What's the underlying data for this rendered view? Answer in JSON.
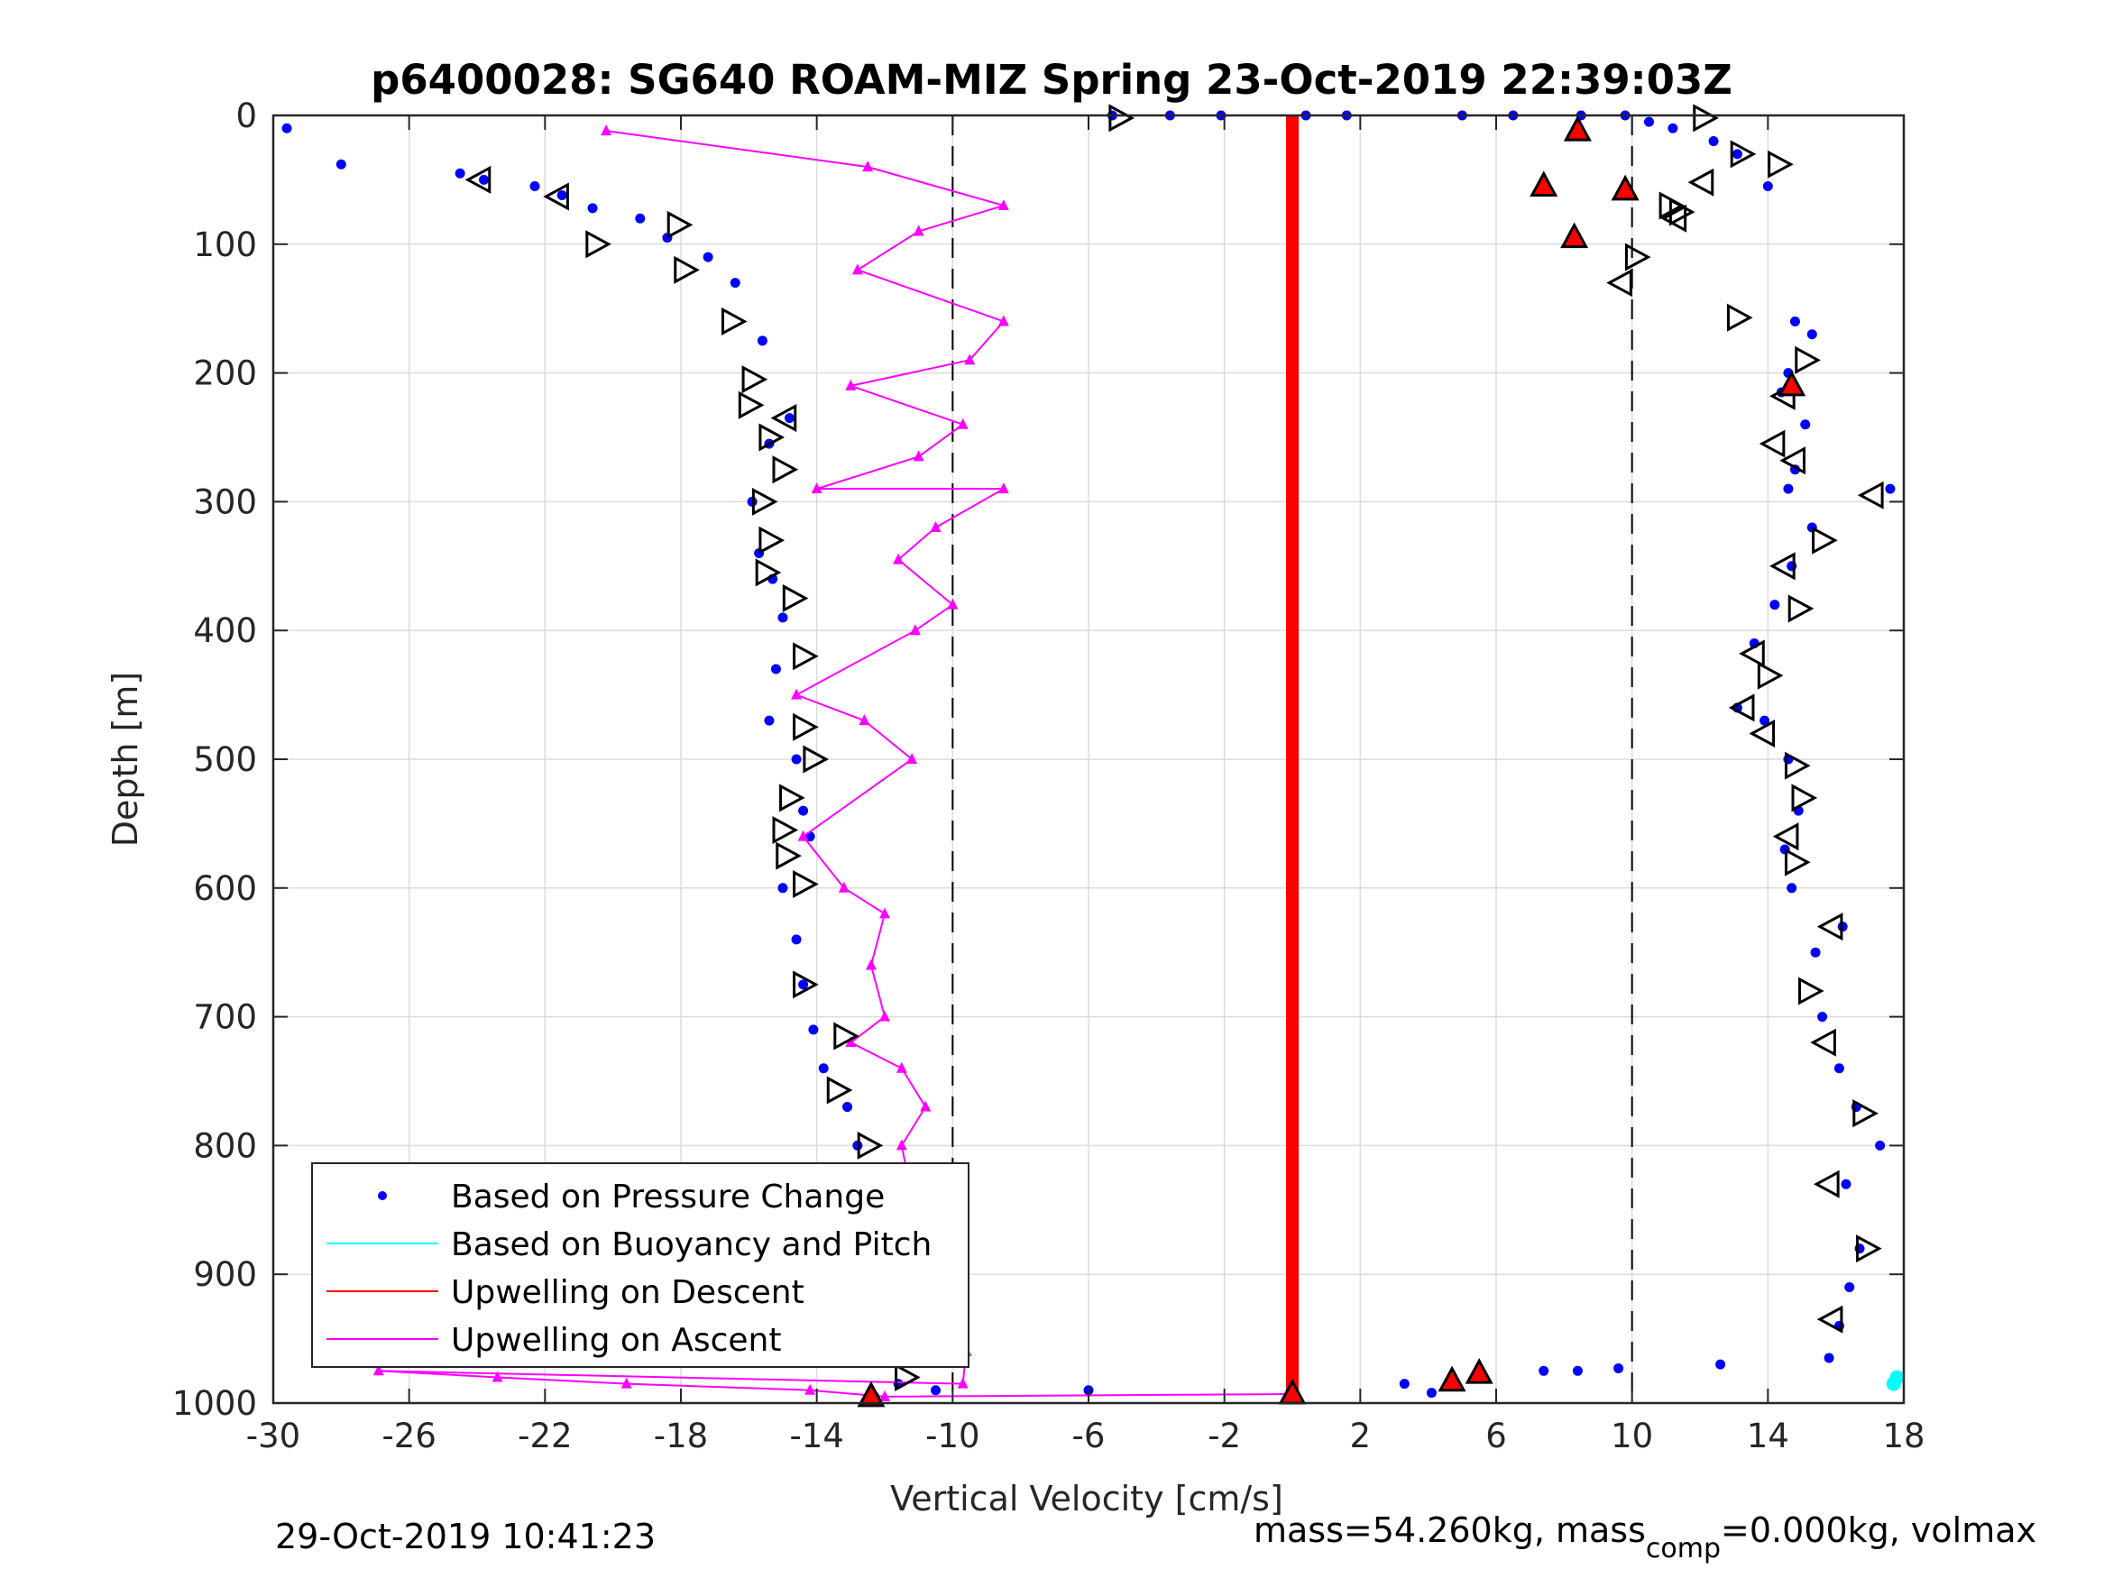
{
  "chart_data": {
    "type": "scatter",
    "title": "p6400028: SG640 ROAM-MIZ Spring 23-Oct-2019 22:39:03Z",
    "xlabel": "Vertical Velocity [cm/s]",
    "ylabel": "Depth [m]",
    "xlim": [
      -30,
      18
    ],
    "ylim": [
      0,
      1000
    ],
    "y_reversed": true,
    "grid": true,
    "legend_position": "bottom-left",
    "xticks": [
      "-30",
      "-26",
      "-22",
      "-18",
      "-14",
      "-10",
      "-6",
      "-2",
      "2",
      "6",
      "10",
      "14",
      "18"
    ],
    "yticks": [
      "0",
      "100",
      "200",
      "300",
      "400",
      "500",
      "600",
      "700",
      "800",
      "900",
      "1000"
    ],
    "reference_lines_x": [
      -10,
      10
    ],
    "series": [
      {
        "name": "Based on Pressure Change",
        "color": "#0000ff",
        "marker": "dot",
        "x": [
          -29.6,
          -28,
          -24.5,
          -23.8,
          -22.3,
          -21.5,
          -20.6,
          -19.2,
          -18.4,
          -17.2,
          -16.4,
          -15.6,
          -14.8,
          -15.4,
          -15.9,
          -15.7,
          -15.3,
          -15.0,
          -15.2,
          -15.4,
          -14.6,
          -14.4,
          -14.2,
          -15.0,
          -14.6,
          -14.4,
          -14.1,
          -13.8,
          -13.1,
          -12.8,
          -12.3,
          -12.0,
          -11.9,
          -11.8,
          -11.7,
          -11.6,
          -12.3,
          -10.5,
          -6.0,
          -5.3,
          -3.6,
          -2.1,
          0.4,
          1.6,
          5.0,
          6.5,
          8.5,
          9.8,
          10.5,
          11.2,
          12.4,
          13.1,
          14.0,
          14.8,
          15.3,
          14.6,
          14.4,
          15.1,
          14.8,
          14.6,
          17.6,
          15.3,
          14.7,
          14.2,
          13.6,
          13.1,
          13.9,
          14.6,
          14.9,
          14.5,
          14.7,
          16.2,
          15.4,
          15.6,
          16.1,
          16.6,
          17.3,
          16.3,
          16.7,
          16.4,
          16.1,
          15.8,
          3.3,
          4.1,
          4.8,
          5.6,
          7.4,
          8.4,
          9.6,
          12.6
        ],
        "y": [
          10,
          38,
          45,
          50,
          55,
          62,
          72,
          80,
          95,
          110,
          130,
          175,
          235,
          255,
          300,
          340,
          360,
          390,
          430,
          470,
          500,
          540,
          560,
          600,
          640,
          675,
          710,
          740,
          770,
          800,
          840,
          870,
          910,
          940,
          965,
          985,
          995,
          990,
          990,
          0,
          0,
          0,
          0,
          0,
          0,
          0,
          0,
          0,
          5,
          10,
          20,
          30,
          55,
          160,
          170,
          200,
          215,
          240,
          275,
          290,
          290,
          320,
          350,
          380,
          410,
          460,
          470,
          500,
          540,
          570,
          600,
          630,
          650,
          700,
          740,
          770,
          800,
          830,
          880,
          910,
          940,
          965,
          985,
          992,
          985,
          978,
          975,
          975,
          973,
          970
        ]
      },
      {
        "name": "Based on Buoyancy and Pitch",
        "color": "#00ffff",
        "marker": "line",
        "x": [
          17.7,
          17.8
        ],
        "y": [
          985,
          980
        ]
      },
      {
        "name": "Upwelling on Descent",
        "color": "#ff0000",
        "marker": "line",
        "x": [
          0.0,
          0.0
        ],
        "y": [
          0,
          995
        ]
      },
      {
        "name": "Upwelling on Ascent",
        "color": "#ff00ff",
        "marker": "triangle",
        "x": [
          -20.2,
          -12.5,
          -8.5,
          -11.0,
          -12.8,
          -8.5,
          -9.5,
          -13.0,
          -9.7,
          -11.0,
          -14.0,
          -8.5,
          -10.5,
          -11.6,
          -10.0,
          -11.1,
          -14.6,
          -12.6,
          -11.2,
          -14.4,
          -13.2,
          -12.0,
          -12.4,
          -12.0,
          -13.0,
          -11.5,
          -10.8,
          -11.5,
          -11.2,
          -11.0,
          -10.3,
          -11.6,
          -9.7,
          -10.2,
          -9.6,
          -9.7,
          -26.9,
          -23.4,
          -19.6,
          -14.2,
          -12.0,
          0.0
        ],
        "y": [
          12,
          40,
          70,
          90,
          120,
          160,
          190,
          210,
          240,
          265,
          290,
          290,
          320,
          345,
          380,
          400,
          450,
          470,
          500,
          560,
          600,
          620,
          660,
          700,
          720,
          740,
          770,
          800,
          840,
          860,
          880,
          900,
          920,
          950,
          960,
          985,
          975,
          980,
          985,
          990,
          995,
          993
        ]
      }
    ],
    "legend": [
      {
        "label": "Based on Pressure Change",
        "color": "#0000ff",
        "marker": "dot"
      },
      {
        "label": "Based on Buoyancy and Pitch",
        "color": "#00ffff",
        "marker": "line"
      },
      {
        "label": "Upwelling on Descent",
        "color": "#ff0000",
        "marker": "line"
      },
      {
        "label": "Upwelling on Ascent",
        "color": "#ff00ff",
        "marker": "line"
      }
    ],
    "triangle_markers": {
      "right_open": [
        {
          "x": -5.1,
          "y": 2
        },
        {
          "x": 12.1,
          "y": 2
        },
        {
          "x": 13.2,
          "y": 30
        },
        {
          "x": 14.3,
          "y": 38
        },
        {
          "x": -18.1,
          "y": 85
        },
        {
          "x": -20.5,
          "y": 100
        },
        {
          "x": -17.9,
          "y": 120
        },
        {
          "x": -16.5,
          "y": 160
        },
        {
          "x": 13.1,
          "y": 157
        },
        {
          "x": 15.1,
          "y": 190
        },
        {
          "x": -15.9,
          "y": 205
        },
        {
          "x": -16.0,
          "y": 225
        },
        {
          "x": -15.4,
          "y": 250
        },
        {
          "x": -15.0,
          "y": 275
        },
        {
          "x": -15.6,
          "y": 300
        },
        {
          "x": -15.4,
          "y": 330
        },
        {
          "x": 15.6,
          "y": 330
        },
        {
          "x": -15.5,
          "y": 355
        },
        {
          "x": -14.7,
          "y": 375
        },
        {
          "x": 14.9,
          "y": 383
        },
        {
          "x": -14.4,
          "y": 420
        },
        {
          "x": 14.0,
          "y": 435
        },
        {
          "x": -14.4,
          "y": 475
        },
        {
          "x": -14.1,
          "y": 500
        },
        {
          "x": 14.8,
          "y": 505
        },
        {
          "x": -14.8,
          "y": 530
        },
        {
          "x": 15.0,
          "y": 530
        },
        {
          "x": -15.0,
          "y": 555
        },
        {
          "x": -14.9,
          "y": 575
        },
        {
          "x": 14.8,
          "y": 580
        },
        {
          "x": -14.4,
          "y": 597
        },
        {
          "x": 15.2,
          "y": 680
        },
        {
          "x": -14.4,
          "y": 675
        },
        {
          "x": -13.2,
          "y": 715
        },
        {
          "x": -13.4,
          "y": 757
        },
        {
          "x": -12.5,
          "y": 800
        },
        {
          "x": -11.6,
          "y": 870
        },
        {
          "x": -11.1,
          "y": 905
        },
        {
          "x": 16.8,
          "y": 775
        },
        {
          "x": 16.9,
          "y": 880
        },
        {
          "x": -11.4,
          "y": 945
        },
        {
          "x": -11.4,
          "y": 980
        },
        {
          "x": 10.1,
          "y": 110
        },
        {
          "x": 11.4,
          "y": 75
        },
        {
          "x": 11.1,
          "y": 70
        }
      ],
      "left_open": [
        {
          "x": -23.9,
          "y": 50
        },
        {
          "x": -21.6,
          "y": 63
        },
        {
          "x": 11.3,
          "y": 80
        },
        {
          "x": 12.1,
          "y": 52
        },
        {
          "x": -14.9,
          "y": 235
        },
        {
          "x": 14.5,
          "y": 218
        },
        {
          "x": 14.2,
          "y": 255
        },
        {
          "x": 14.8,
          "y": 268
        },
        {
          "x": 17.1,
          "y": 295
        },
        {
          "x": 14.5,
          "y": 350
        },
        {
          "x": 13.6,
          "y": 418
        },
        {
          "x": 13.3,
          "y": 460
        },
        {
          "x": 13.9,
          "y": 480
        },
        {
          "x": 14.6,
          "y": 560
        },
        {
          "x": 15.9,
          "y": 630
        },
        {
          "x": 15.7,
          "y": 720
        },
        {
          "x": 15.8,
          "y": 830
        },
        {
          "x": 15.9,
          "y": 935
        },
        {
          "x": 9.7,
          "y": 130
        }
      ],
      "up_filled_red": [
        {
          "x": 8.4,
          "y": 12
        },
        {
          "x": 7.4,
          "y": 55
        },
        {
          "x": 9.8,
          "y": 58
        },
        {
          "x": 8.3,
          "y": 95
        },
        {
          "x": 14.7,
          "y": 210
        },
        {
          "x": 4.7,
          "y": 983
        },
        {
          "x": 5.5,
          "y": 977
        },
        {
          "x": -12.4,
          "y": 995
        },
        {
          "x": 0.0,
          "y": 993
        }
      ]
    }
  },
  "footer": {
    "left": "29-Oct-2019 10:41:23",
    "right_prefix": "mass=54.260kg, mass",
    "right_sub": "comp",
    "right_suffix": "=0.000kg, volmax"
  }
}
